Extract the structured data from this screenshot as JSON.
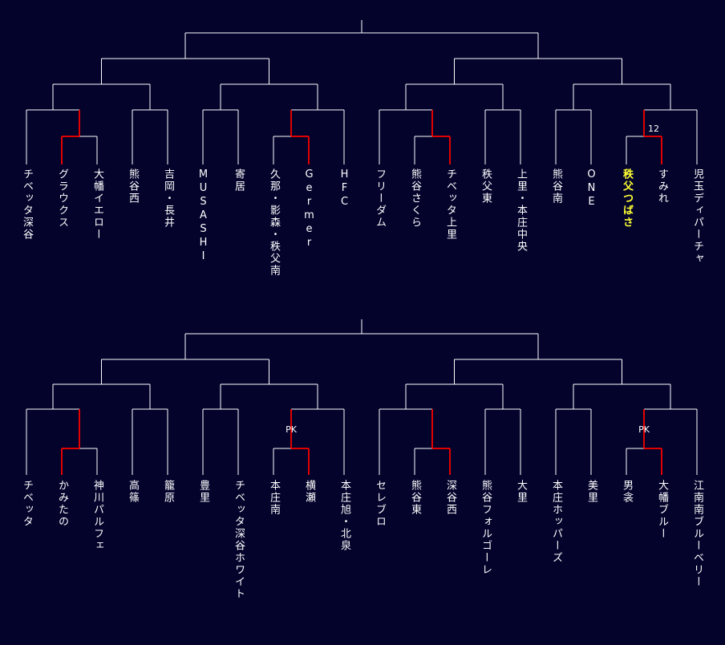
{
  "colors": {
    "background": "#03032c",
    "line": "#ffffff",
    "winner_line": "#e00000",
    "highlight_text": "#ffff33"
  },
  "brackets": [
    {
      "teams": [
        "チベッタ深谷",
        "グラウクス",
        "大幡イエロー",
        "熊谷西",
        "吉岡・長井",
        "MUSASHI",
        "寄居",
        "久那・影森・秩父南",
        "Germer",
        "HFC",
        "フリーダム",
        "熊谷さくら",
        "チベッタ上里",
        "秩父東",
        "上里・本庄中央",
        "熊谷南",
        "ONE",
        "秩父つばさ",
        "すみれ",
        "児玉ディパーチャ"
      ],
      "highlighted_team": 17,
      "sub_matches": [
        {
          "teams": [
            1,
            2
          ],
          "winner": 1,
          "note": ""
        },
        {
          "teams": [
            7,
            8
          ],
          "winner": 8,
          "note": ""
        },
        {
          "teams": [
            11,
            12
          ],
          "winner": 12,
          "note": ""
        },
        {
          "teams": [
            17,
            18
          ],
          "winner": 18,
          "note": "12"
        }
      ]
    },
    {
      "teams": [
        "チベッタ",
        "かみたの",
        "神川パルフェ",
        "高篠",
        "籠原",
        "豊里",
        "チベッタ深谷ホワイト",
        "本庄南",
        "横瀬",
        "本庄旭・北泉",
        "セレブロ",
        "熊谷東",
        "深谷西",
        "熊谷フォルゴーレ",
        "大里",
        "本庄ホッパーズ",
        "美里",
        "男衾",
        "大幡ブルー",
        "江南南ブルーベリー"
      ],
      "highlighted_team": null,
      "sub_matches": [
        {
          "teams": [
            1,
            2
          ],
          "winner": 1,
          "note": ""
        },
        {
          "teams": [
            7,
            8
          ],
          "winner": 8,
          "note": "PK"
        },
        {
          "teams": [
            11,
            12
          ],
          "winner": 12,
          "note": ""
        },
        {
          "teams": [
            17,
            18
          ],
          "winner": 18,
          "note": "PK"
        }
      ]
    }
  ]
}
